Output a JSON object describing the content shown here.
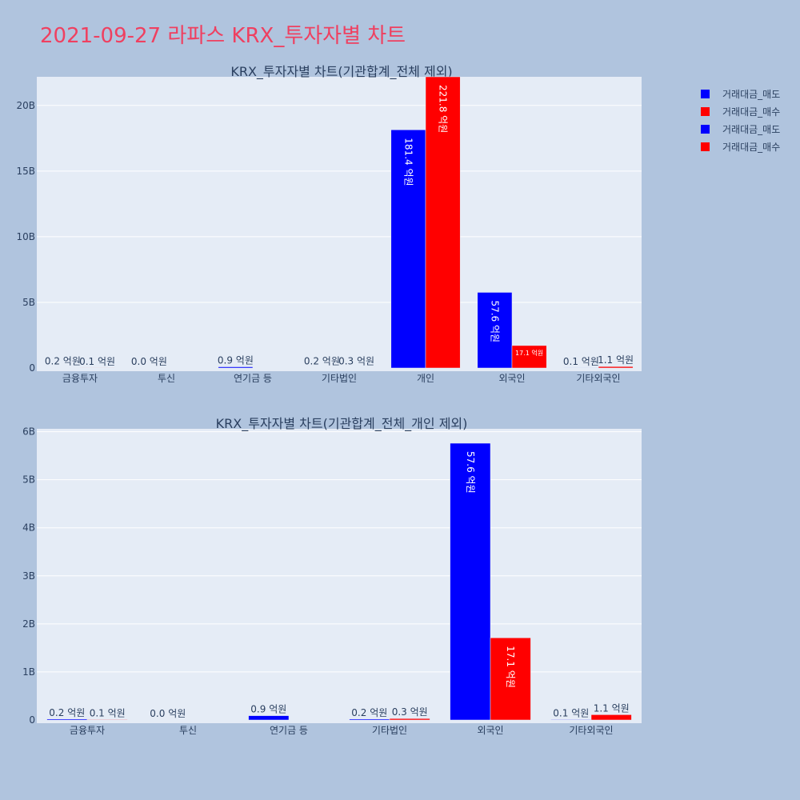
{
  "page_title": "2021-09-27 라파스 KRX_투자자별 차트",
  "colors": {
    "sell": "#0000ff",
    "buy": "#ff0000",
    "plot_bg": "#e5ecf6",
    "page_bg": "#b0c4de",
    "title": "#ef4060"
  },
  "legend": [
    {
      "label": "거래대금_매도",
      "color": "#0000ff"
    },
    {
      "label": "거래대금_매수",
      "color": "#ff0000"
    },
    {
      "label": "거래대금_매도",
      "color": "#0000ff"
    },
    {
      "label": "거래대금_매수",
      "color": "#ff0000"
    }
  ],
  "chart_data": [
    {
      "type": "bar",
      "title": "KRX_투자자별 차트(기관합계_전체 제외)",
      "categories": [
        "금융투자",
        "투신",
        "연기금 등",
        "기타법인",
        "개인",
        "외국인",
        "기타외국인"
      ],
      "series": [
        {
          "name": "거래대금_매도",
          "color": "#0000ff",
          "values": [
            20000000,
            0,
            90000000,
            20000000,
            18140000000,
            5760000000,
            10000000
          ],
          "labels": [
            "0.2 억원",
            "0.0 억원",
            "0.9 억원",
            "0.2 억원",
            "181.4 억원",
            "57.6 억원",
            "0.1 억원"
          ]
        },
        {
          "name": "거래대금_매수",
          "color": "#ff0000",
          "values": [
            10000000,
            null,
            null,
            30000000,
            22180000000,
            1710000000,
            110000000
          ],
          "labels": [
            "0.1 억원",
            "",
            "",
            "0.3 억원",
            "221.8 억원",
            "17.1 억원",
            "1.1 억원"
          ]
        }
      ],
      "ylim": [
        0,
        22180000000
      ],
      "yticks": [
        0,
        5000000000,
        10000000000,
        15000000000,
        20000000000
      ],
      "ytick_labels": [
        "0",
        "5B",
        "10B",
        "15B",
        "20B"
      ],
      "grid": true,
      "legend_position": "top-right"
    },
    {
      "type": "bar",
      "title": "KRX_투자자별 차트(기관합계_전체_개인 제외)",
      "categories": [
        "금융투자",
        "투신",
        "연기금 등",
        "기타법인",
        "외국인",
        "기타외국인"
      ],
      "series": [
        {
          "name": "거래대금_매도",
          "color": "#0000ff",
          "values": [
            20000000,
            0,
            90000000,
            20000000,
            5760000000,
            10000000
          ],
          "labels": [
            "0.2 억원",
            "0.0 억원",
            "0.9 억원",
            "0.2 억원",
            "57.6 억원",
            "0.1 억원"
          ]
        },
        {
          "name": "거래대금_매수",
          "color": "#ff0000",
          "values": [
            10000000,
            null,
            null,
            30000000,
            1710000000,
            110000000
          ],
          "labels": [
            "0.1 억원",
            "",
            "",
            "0.3 억원",
            "17.1 억원",
            "1.1 억원"
          ]
        }
      ],
      "ylim": [
        0,
        6060000000
      ],
      "yticks": [
        0,
        1000000000,
        2000000000,
        3000000000,
        4000000000,
        5000000000,
        6000000000
      ],
      "ytick_labels": [
        "0",
        "1B",
        "2B",
        "3B",
        "4B",
        "5B",
        "6B"
      ],
      "grid": true,
      "legend_position": "top-right"
    }
  ]
}
